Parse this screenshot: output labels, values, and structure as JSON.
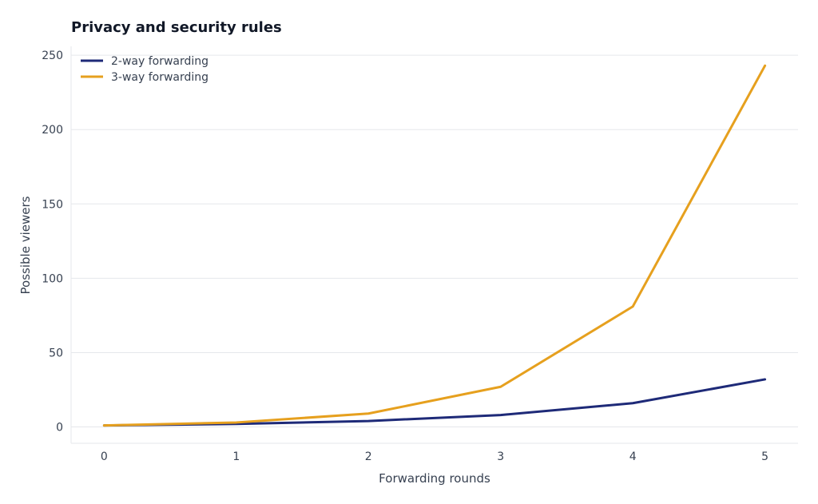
{
  "chart_data": {
    "type": "line",
    "title": "Privacy and security rules",
    "xlabel": "Forwarding rounds",
    "ylabel": "Possible viewers",
    "x": [
      0,
      1,
      2,
      3,
      4,
      5
    ],
    "series": [
      {
        "name": "2-way forwarding",
        "values": [
          1,
          2,
          4,
          8,
          16,
          32
        ],
        "color": "#1e2a78"
      },
      {
        "name": "3-way forwarding",
        "values": [
          1,
          3,
          9,
          27,
          81,
          243
        ],
        "color": "#e6a01e"
      }
    ],
    "xticks": [
      "0",
      "1",
      "2",
      "3",
      "4",
      "5"
    ],
    "yticks": [
      "0",
      "50",
      "100",
      "150",
      "200",
      "250"
    ],
    "xlim": [
      -0.25,
      5.25
    ],
    "ylim": [
      -11,
      256
    ],
    "grid": "horizontal",
    "legend_position": "top-left"
  }
}
